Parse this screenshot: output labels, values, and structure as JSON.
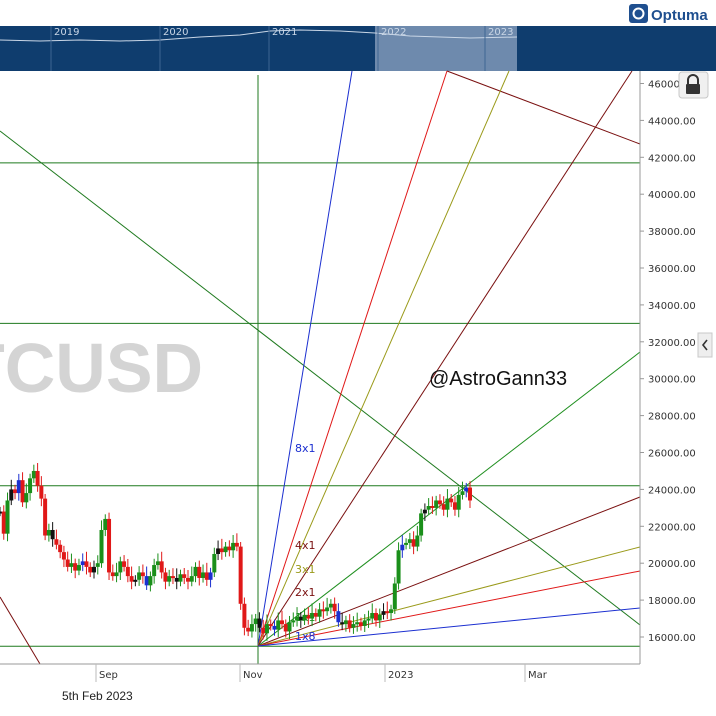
{
  "app": {
    "brand": "Optuma",
    "watermark_symbol": "TCUSD",
    "annotation_handle": "@AstroGann33",
    "status_date": "5th Feb 2023"
  },
  "navigator": {
    "years": [
      "2019",
      "2020",
      "2021",
      "2022",
      "2023"
    ]
  },
  "colors": {
    "navigator_bg": "#0f3d6e",
    "navigator_selection": "#7f98b8",
    "up_bar": "#1a8f1a",
    "down_bar": "#e01818",
    "neutral_bar": "#111111",
    "doji_bar": "#1b2fd0",
    "grid_green": "#1f7a1f",
    "fan_blue": "#1b2fd0",
    "fan_red": "#e01818",
    "fan_olive": "#9a9a1a",
    "fan_maroon": "#7a1010",
    "fan_green": "#1f8f1f"
  },
  "icons": {
    "lock": "lock-icon",
    "collapse": "chevron-left-icon",
    "logo": "optuma-logo-icon"
  },
  "chart_data": {
    "type": "candlestick",
    "title": "",
    "xlabel": "",
    "ylabel": "",
    "x_tick_labels": [
      "Sep",
      "Nov",
      "2023",
      "Mar"
    ],
    "y_tick_labels": [
      "16000.00",
      "18000.00",
      "20000.00",
      "22000.00",
      "24000.00",
      "26000.00",
      "28000.00",
      "30000.00",
      "32000.00",
      "34000.00",
      "36000.00",
      "38000.00",
      "40000.00",
      "42000.00",
      "44000.00",
      "46000.00"
    ],
    "ylim": [
      14500,
      47500
    ],
    "horizontal_levels": [
      15500,
      24200,
      33000,
      41700
    ],
    "vertical_marker": "Nov 2022",
    "gann_fan": {
      "origin": {
        "date": "Nov 2022",
        "price": 15500
      },
      "lines": [
        "8x1",
        "4x1",
        "3x1",
        "2x1",
        "1x1",
        "1x2",
        "1x3",
        "1x4",
        "1x8"
      ],
      "labels": [
        "8x1",
        "4x1",
        "3x1",
        "2x1",
        "1x1",
        "1x8"
      ]
    },
    "price_series": {
      "description": "daily BTCUSD closes, Aug 2022 - Feb 2023 (approx.)",
      "closes": [
        22800,
        21600,
        23400,
        24000,
        23800,
        24500,
        23300,
        23800,
        24600,
        25000,
        24200,
        23500,
        21500,
        21800,
        21300,
        21000,
        20600,
        20200,
        19800,
        20000,
        19600,
        19900,
        20100,
        19800,
        19500,
        19800,
        20000,
        21800,
        22400,
        19500,
        19300,
        19500,
        20100,
        19800,
        19300,
        19000,
        19100,
        19500,
        19300,
        18800,
        19300,
        19900,
        20100,
        19500,
        19000,
        19300,
        19200,
        19000,
        19400,
        19200,
        19000,
        19300,
        19800,
        19200,
        19500,
        19100,
        19500,
        20500,
        20800,
        20600,
        20900,
        20700,
        21100,
        20900,
        17800,
        16500,
        16300,
        16700,
        17000,
        16500,
        16200,
        16700,
        16600,
        16400,
        16900,
        16700,
        16300,
        16800,
        16900,
        17100,
        16900,
        17200,
        17000,
        17300,
        17100,
        17500,
        17400,
        17600,
        17800,
        17400,
        16800,
        16700,
        16900,
        16500,
        16700,
        16800,
        16600,
        16900,
        17000,
        17300,
        16900,
        17200,
        17400,
        17300,
        17500,
        18900,
        20700,
        21000,
        21100,
        21300,
        20900,
        21500,
        22700,
        22900,
        23100,
        23000,
        23400,
        23200,
        22900,
        23500,
        23300,
        22900,
        23700,
        23900,
        24100,
        23400
      ]
    },
    "grid": false,
    "legend": "none"
  }
}
